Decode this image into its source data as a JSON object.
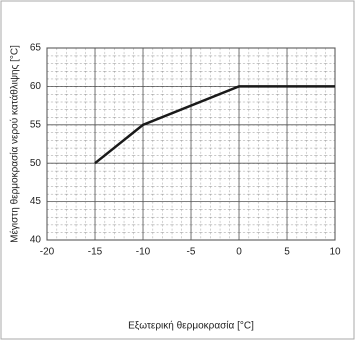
{
  "chart_data": {
    "type": "line",
    "x_label": "Εξωτερική θερμοκρασία [°C]",
    "y_label": "Μέγιστη θερμοκρασία νερού κατάθλιψης [°C]",
    "x": [
      -15,
      -10,
      0,
      10
    ],
    "series": [
      {
        "color": "#1a1a1a",
        "values": [
          50,
          55,
          60,
          60
        ]
      }
    ],
    "xlim": [
      -20,
      10
    ],
    "xticks": [
      -20,
      -15,
      -10,
      -5,
      0,
      5,
      10
    ],
    "ylim": [
      40,
      65
    ],
    "yticks": [
      40,
      45,
      50,
      55,
      60,
      65
    ],
    "grid": true
  }
}
